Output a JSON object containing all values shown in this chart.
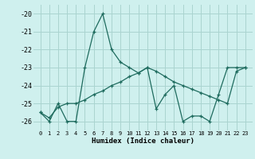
{
  "xlabel": "Humidex (Indice chaleur)",
  "x_values": [
    0,
    1,
    2,
    3,
    4,
    5,
    6,
    7,
    8,
    9,
    10,
    11,
    12,
    13,
    14,
    15,
    16,
    17,
    18,
    19,
    20,
    21,
    22,
    23
  ],
  "line1_y": [
    -25.5,
    -26.0,
    -25.0,
    -26.0,
    -26.0,
    -23.0,
    -21.0,
    -20.0,
    -22.0,
    -22.7,
    -23.0,
    -23.3,
    -23.0,
    -25.3,
    -24.5,
    -24.0,
    -26.0,
    -25.7,
    -25.7,
    -26.0,
    -24.5,
    -23.0,
    -23.0,
    -23.0
  ],
  "line2_y": [
    -25.5,
    -25.8,
    -25.2,
    -25.0,
    -25.0,
    -24.8,
    -24.5,
    -24.3,
    -24.0,
    -23.8,
    -23.5,
    -23.3,
    -23.0,
    -23.2,
    -23.5,
    -23.8,
    -24.0,
    -24.2,
    -24.4,
    -24.6,
    -24.8,
    -25.0,
    -23.2,
    -23.0
  ],
  "ylim": [
    -26.5,
    -19.5
  ],
  "yticks": [
    -26,
    -25,
    -24,
    -23,
    -22,
    -21,
    -20
  ],
  "xticks": [
    0,
    1,
    2,
    3,
    4,
    5,
    6,
    7,
    8,
    9,
    10,
    11,
    12,
    13,
    14,
    15,
    16,
    17,
    18,
    19,
    20,
    21,
    22,
    23
  ],
  "bg_color": "#cff0ee",
  "grid_color": "#aad4d0",
  "line_color": "#1e6b5e",
  "marker": "+"
}
